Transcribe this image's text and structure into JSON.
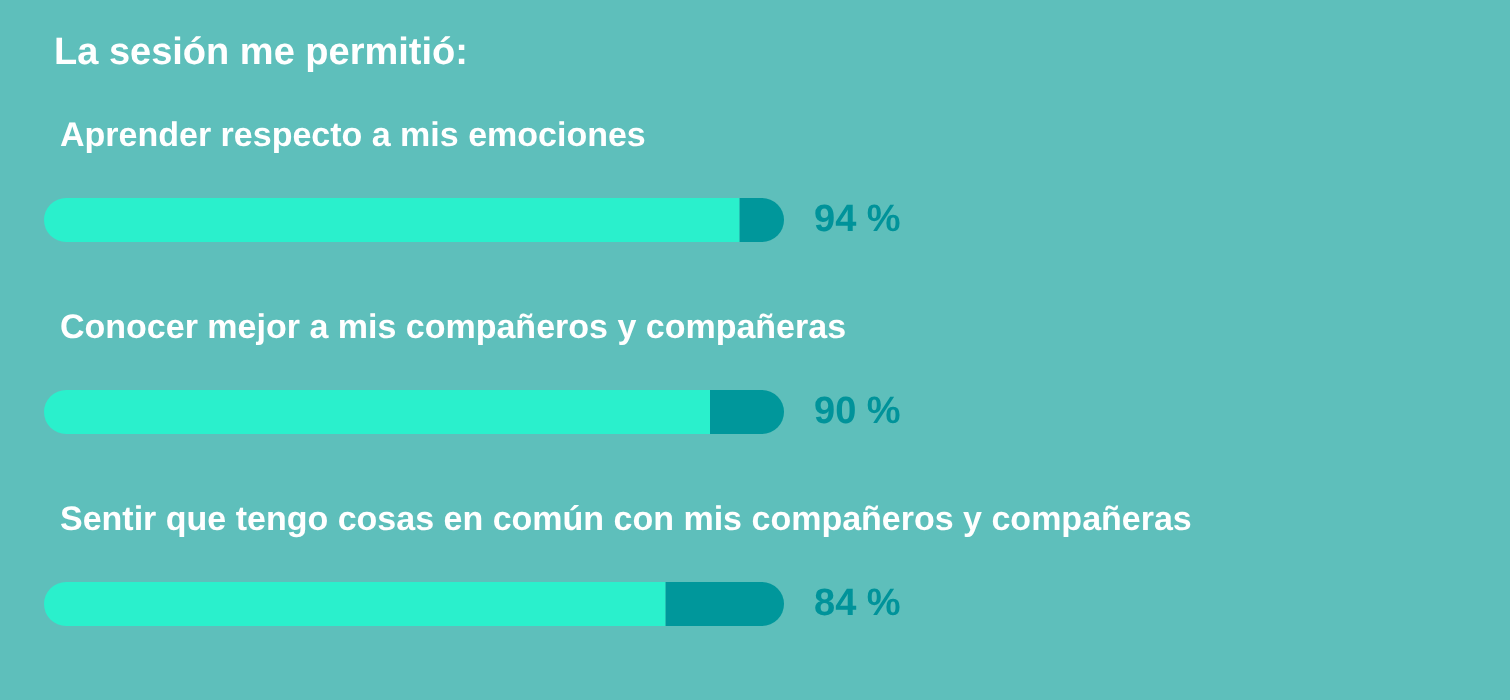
{
  "chart_data": {
    "type": "bar",
    "orientation": "horizontal",
    "stacked": true,
    "title": "La sesión me permitió:",
    "categories": [
      "Aprender respecto a mis emociones",
      "Conocer mejor a mis compañeros y compañeras",
      "Sentir que tengo cosas en común con mis compañeros y compañeras"
    ],
    "series": [
      {
        "color": "#2af0cc",
        "values": [
          94,
          90,
          84
        ],
        "value_labels": [
          "94 %",
          "90 %",
          "84 %"
        ]
      },
      {
        "color": "#00979b",
        "values": [
          6,
          10,
          16
        ]
      }
    ],
    "xlim": [
      0,
      100
    ],
    "tick_labels": "y",
    "grid": false
  }
}
